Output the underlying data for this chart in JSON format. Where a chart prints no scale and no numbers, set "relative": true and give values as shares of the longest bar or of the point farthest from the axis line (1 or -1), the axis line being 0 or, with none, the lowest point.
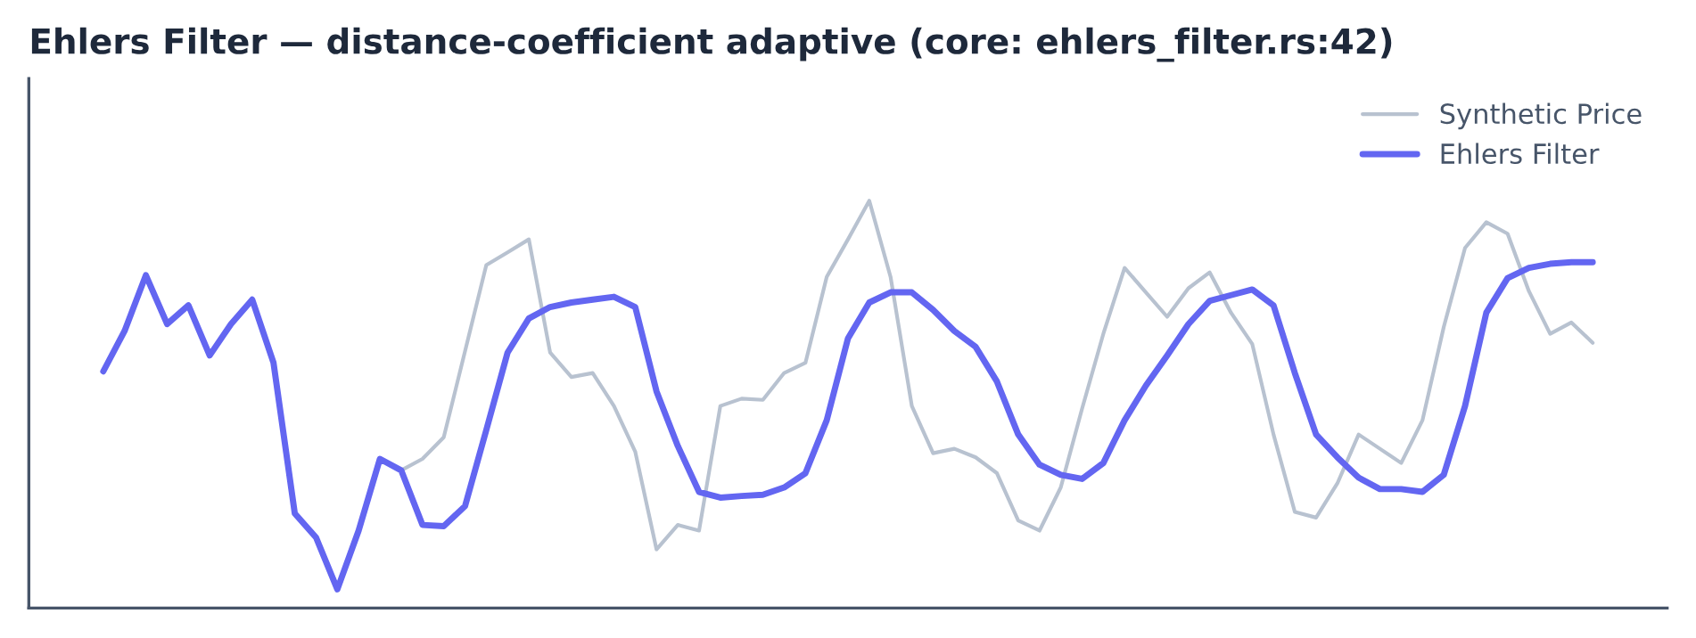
{
  "chart_data": {
    "type": "line",
    "title": "Ehlers Filter — distance-coefficient adaptive (core: ehlers_filter.rs:42)",
    "relative": true,
    "legend": "top right",
    "grid": false,
    "categories": [
      null,
      null,
      null,
      null,
      null,
      null,
      null,
      null,
      null,
      null,
      null,
      null,
      null,
      null,
      null,
      null,
      null,
      null,
      null,
      null,
      null,
      null,
      null,
      null,
      null,
      null,
      null,
      null,
      null,
      null,
      null,
      null,
      null,
      null,
      null,
      null,
      null,
      null,
      null,
      null,
      null,
      null,
      null,
      null,
      null,
      null,
      null,
      null,
      null,
      null,
      null,
      null,
      null,
      null,
      null,
      null,
      null,
      null,
      null,
      null,
      null,
      null,
      null,
      null,
      null,
      null,
      null,
      null,
      null,
      null,
      null
    ],
    "series": [
      {
        "name": "Synthetic Price",
        "color": "#b8c2d0",
        "values": [
          null,
          null,
          null,
          null,
          null,
          null,
          null,
          null,
          null,
          null,
          null,
          null,
          null,
          null,
          0.338,
          0.366,
          0.419,
          0.63,
          0.842,
          0.873,
          0.905,
          0.627,
          0.567,
          0.577,
          0.496,
          0.384,
          0.144,
          0.204,
          0.19,
          0.496,
          0.514,
          0.511,
          0.577,
          0.602,
          0.813,
          0.905,
          1.0,
          0.813,
          0.496,
          0.38,
          0.391,
          0.37,
          0.331,
          0.215,
          0.19,
          0.296,
          0.489,
          0.673,
          0.835,
          0.775,
          0.715,
          0.785,
          0.824,
          0.725,
          0.648,
          0.426,
          0.236,
          0.222,
          0.306,
          0.426,
          0.391,
          0.356,
          0.461,
          0.69,
          0.884,
          0.947,
          0.919,
          0.778,
          0.673,
          0.701,
          0.651
        ]
      },
      {
        "name": "Ehlers Filter",
        "color": "#6366f1",
        "values": [
          0.581,
          0.68,
          0.817,
          0.697,
          0.743,
          0.62,
          0.697,
          0.757,
          0.602,
          0.232,
          0.173,
          0.046,
          0.19,
          0.366,
          0.338,
          0.204,
          0.201,
          0.25,
          0.437,
          0.627,
          0.711,
          0.739,
          0.75,
          0.757,
          0.764,
          0.739,
          0.532,
          0.398,
          0.285,
          0.271,
          0.275,
          0.278,
          0.296,
          0.331,
          0.461,
          0.662,
          0.75,
          0.775,
          0.775,
          0.732,
          0.68,
          0.641,
          0.556,
          0.426,
          0.352,
          0.327,
          0.317,
          0.356,
          0.461,
          0.546,
          0.62,
          0.697,
          0.754,
          0.768,
          0.782,
          0.743,
          0.577,
          0.426,
          0.37,
          0.32,
          0.292,
          0.292,
          0.285,
          0.327,
          0.496,
          0.725,
          0.81,
          0.835,
          0.845,
          0.849,
          0.849
        ]
      }
    ]
  }
}
